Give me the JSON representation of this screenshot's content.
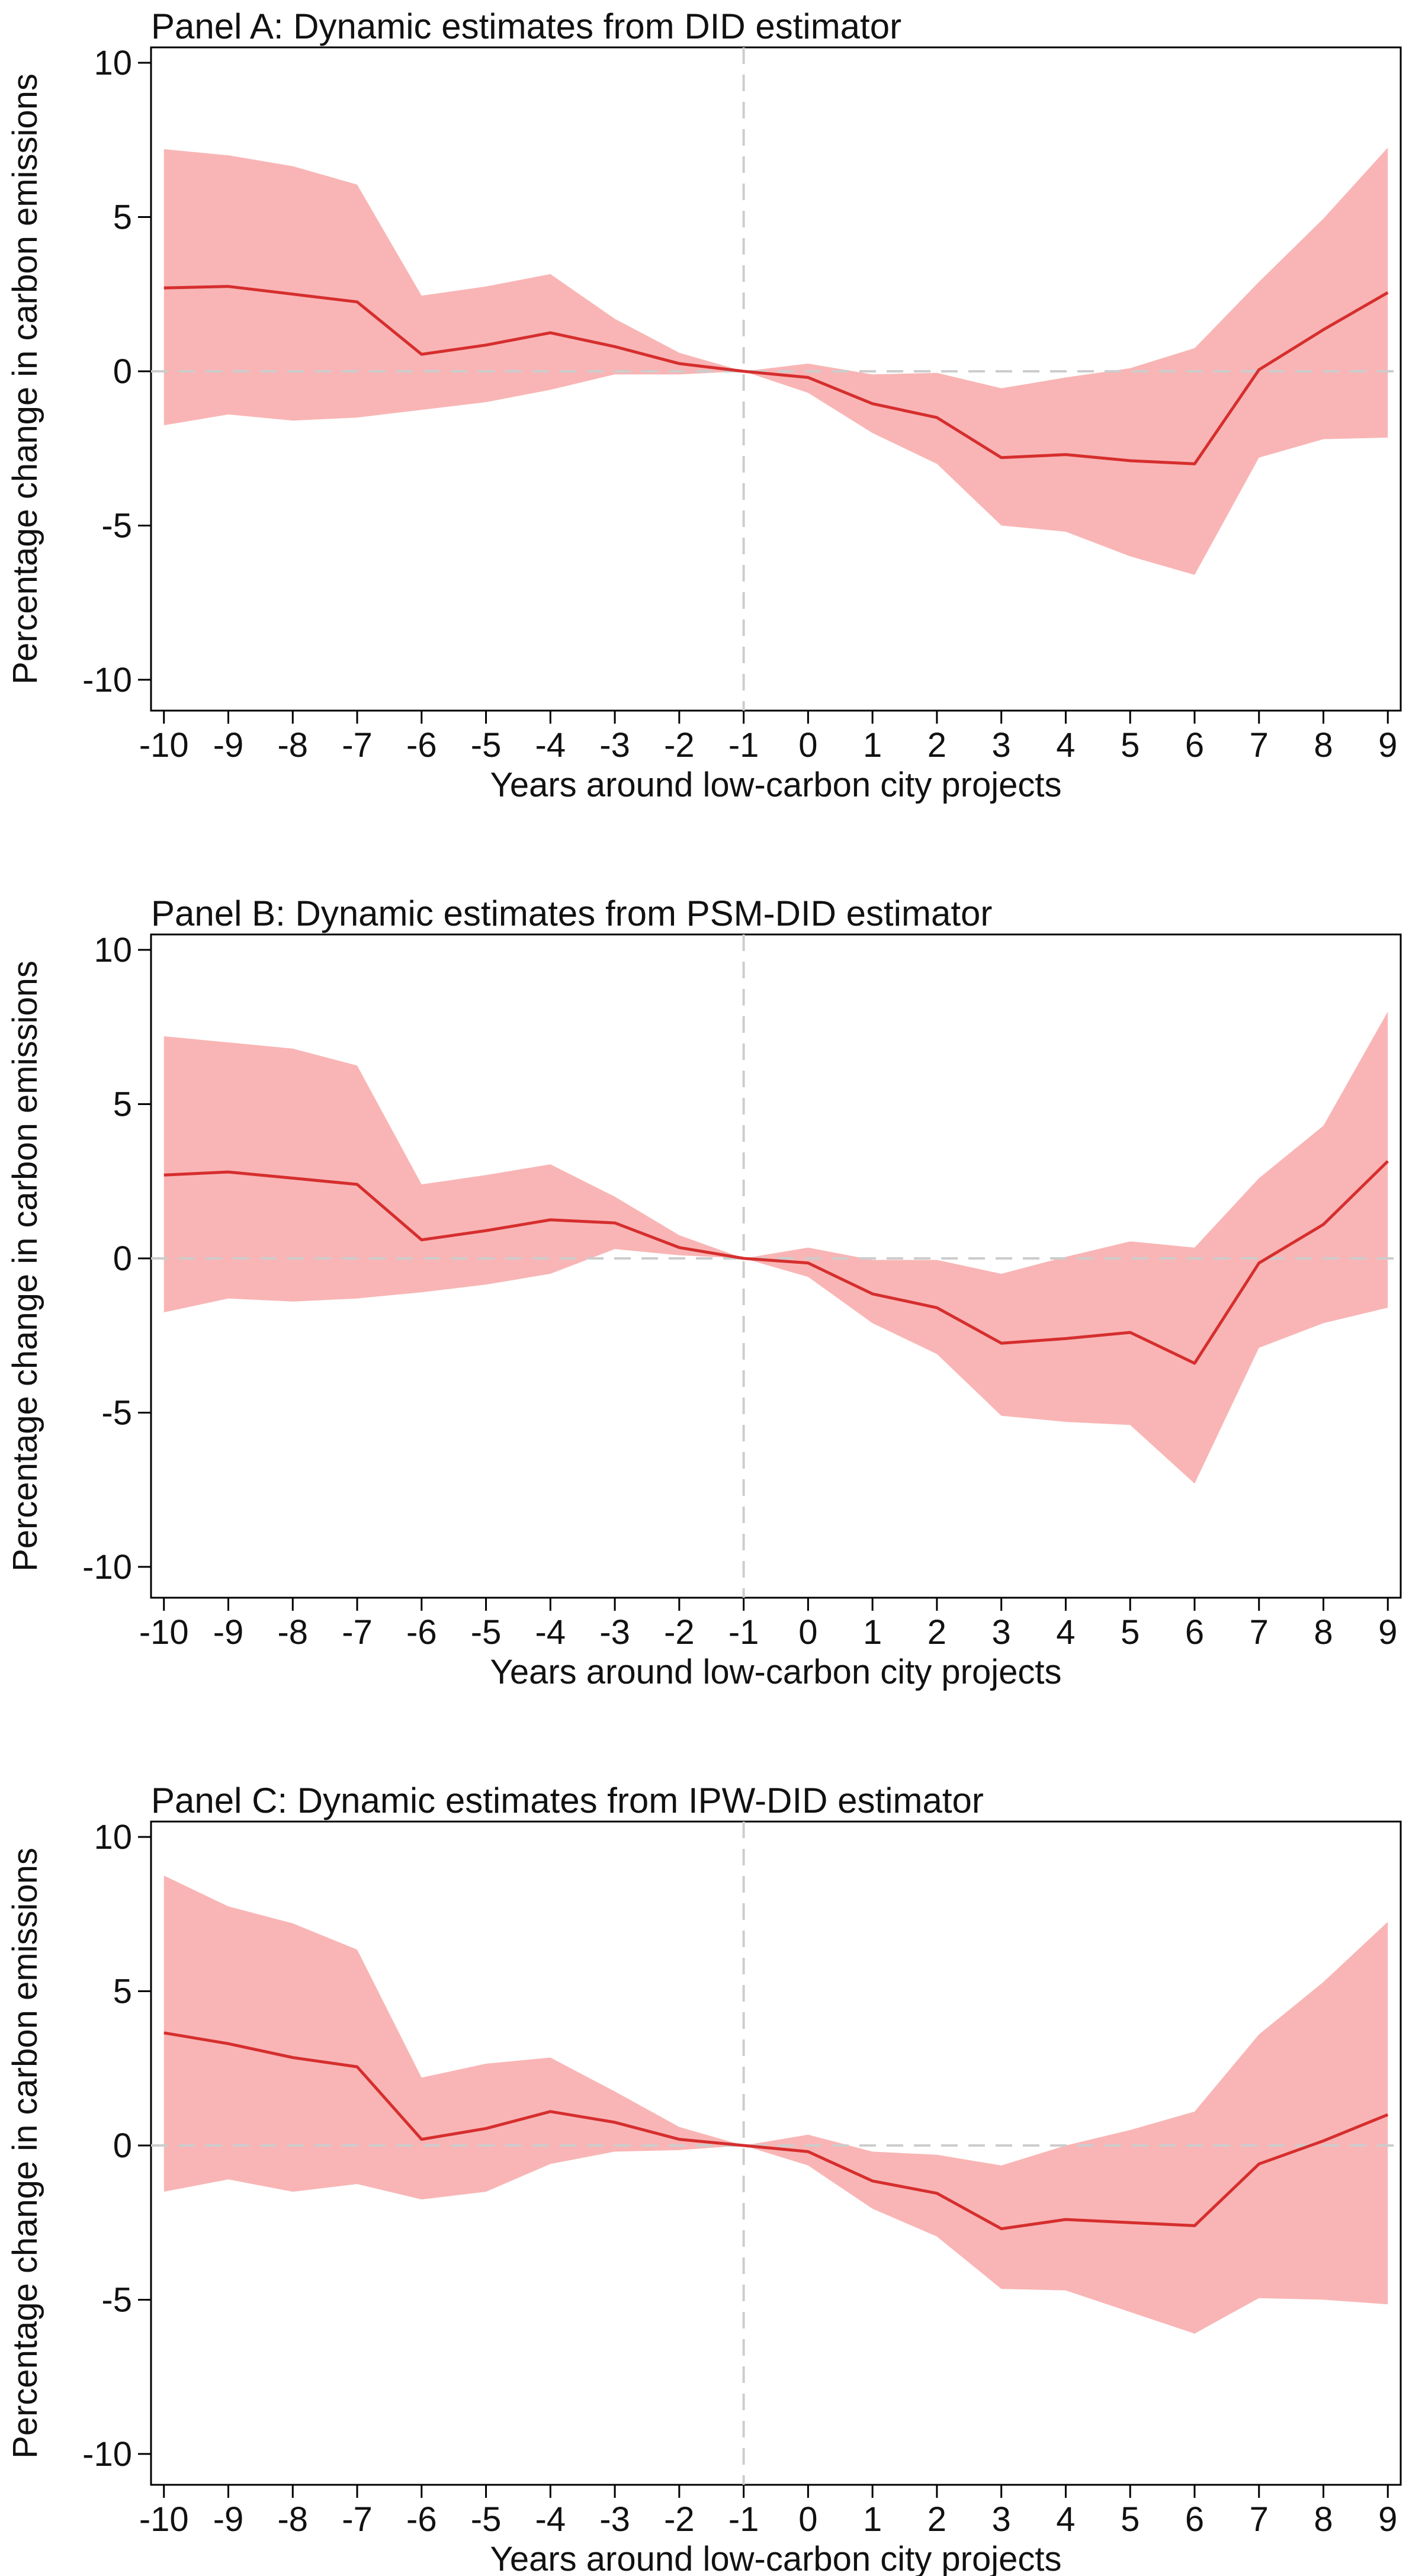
{
  "chart_data": [
    {
      "type": "line",
      "title": "Panel A: Dynamic estimates from DID estimator",
      "xlabel": "Years around low-carbon city projects",
      "ylabel": "Percentage change in carbon emissions",
      "x": [
        -10,
        -9,
        -8,
        -7,
        -6,
        -5,
        -4,
        -3,
        -2,
        -1,
        0,
        1,
        2,
        3,
        4,
        5,
        6,
        7,
        8,
        9
      ],
      "xticks": [
        "-10",
        "-9",
        "-8",
        "-7",
        "-6",
        "-5",
        "-4",
        "-3",
        "-2",
        "-1",
        "0",
        "1",
        "2",
        "3",
        "4",
        "5",
        "6",
        "7",
        "8",
        "9"
      ],
      "yticks": [
        "-10",
        "-5",
        "0",
        "5",
        "10"
      ],
      "xlim": [
        -10.2,
        9.2
      ],
      "ylim": [
        -11,
        10.5
      ],
      "series": [
        {
          "type": "line",
          "values": [
            2.7,
            2.75,
            2.5,
            2.25,
            0.55,
            0.85,
            1.25,
            0.8,
            0.25,
            0.0,
            -0.2,
            -1.05,
            -1.5,
            -2.8,
            -2.7,
            -2.9,
            -3.0,
            0.05,
            1.35,
            2.55
          ]
        },
        {
          "type": "band",
          "lower": [
            -1.75,
            -1.4,
            -1.6,
            -1.5,
            -1.25,
            -1.0,
            -0.6,
            -0.1,
            -0.1,
            0.0,
            -0.7,
            -2.0,
            -3.0,
            -5.0,
            -5.2,
            -6.0,
            -6.6,
            -2.8,
            -2.2,
            -2.15
          ],
          "upper": [
            7.2,
            7.0,
            6.65,
            6.05,
            2.45,
            2.75,
            3.15,
            1.7,
            0.6,
            0.0,
            0.25,
            -0.1,
            -0.05,
            -0.55,
            -0.2,
            0.1,
            0.75,
            2.9,
            4.95,
            7.25
          ]
        }
      ],
      "reference_lines": {
        "x": -1,
        "y": 0
      },
      "colors": {
        "line": "#d62e2e",
        "band": "#f9b5b5",
        "reference": "#cccccc"
      }
    },
    {
      "type": "line",
      "title": "Panel B: Dynamic estimates from PSM-DID estimator",
      "xlabel": "Years around low-carbon city projects",
      "ylabel": "Percentage change in carbon emissions",
      "x": [
        -10,
        -9,
        -8,
        -7,
        -6,
        -5,
        -4,
        -3,
        -2,
        -1,
        0,
        1,
        2,
        3,
        4,
        5,
        6,
        7,
        8,
        9
      ],
      "xticks": [
        "-10",
        "-9",
        "-8",
        "-7",
        "-6",
        "-5",
        "-4",
        "-3",
        "-2",
        "-1",
        "0",
        "1",
        "2",
        "3",
        "4",
        "5",
        "6",
        "7",
        "8",
        "9"
      ],
      "yticks": [
        "-10",
        "-5",
        "0",
        "5",
        "10"
      ],
      "xlim": [
        -10.2,
        9.2
      ],
      "ylim": [
        -11,
        10.5
      ],
      "series": [
        {
          "type": "line",
          "values": [
            2.7,
            2.8,
            2.6,
            2.4,
            0.6,
            0.9,
            1.25,
            1.15,
            0.35,
            0.0,
            -0.15,
            -1.15,
            -1.6,
            -2.75,
            -2.6,
            -2.4,
            -3.4,
            -0.15,
            1.1,
            3.15
          ]
        },
        {
          "type": "band",
          "lower": [
            -1.75,
            -1.3,
            -1.4,
            -1.3,
            -1.1,
            -0.85,
            -0.5,
            0.3,
            0.1,
            0.0,
            -0.6,
            -2.1,
            -3.1,
            -5.1,
            -5.3,
            -5.4,
            -7.3,
            -2.9,
            -2.1,
            -1.6
          ],
          "upper": [
            7.2,
            7.0,
            6.8,
            6.25,
            2.4,
            2.7,
            3.05,
            2.0,
            0.75,
            0.0,
            0.35,
            -0.05,
            -0.05,
            -0.5,
            0.05,
            0.55,
            0.35,
            2.6,
            4.3,
            8.0
          ]
        }
      ],
      "reference_lines": {
        "x": -1,
        "y": 0
      },
      "colors": {
        "line": "#d62e2e",
        "band": "#f9b5b5",
        "reference": "#cccccc"
      }
    },
    {
      "type": "line",
      "title": "Panel C: Dynamic estimates from IPW-DID estimator",
      "xlabel": "Years around low-carbon city projects",
      "ylabel": "Percentage change in carbon emissions",
      "x": [
        -10,
        -9,
        -8,
        -7,
        -6,
        -5,
        -4,
        -3,
        -2,
        -1,
        0,
        1,
        2,
        3,
        4,
        5,
        6,
        7,
        8,
        9
      ],
      "xticks": [
        "-10",
        "-9",
        "-8",
        "-7",
        "-6",
        "-5",
        "-4",
        "-3",
        "-2",
        "-1",
        "0",
        "1",
        "2",
        "3",
        "4",
        "5",
        "6",
        "7",
        "8",
        "9"
      ],
      "yticks": [
        "-10",
        "-5",
        "0",
        "5",
        "10"
      ],
      "xlim": [
        -10.2,
        9.2
      ],
      "ylim": [
        -11,
        10.5
      ],
      "series": [
        {
          "type": "line",
          "values": [
            3.65,
            3.3,
            2.85,
            2.55,
            0.2,
            0.55,
            1.1,
            0.75,
            0.2,
            0.0,
            -0.2,
            -1.15,
            -1.55,
            -2.7,
            -2.4,
            -2.5,
            -2.6,
            -0.6,
            0.15,
            1.0
          ]
        },
        {
          "type": "band",
          "lower": [
            -1.5,
            -1.1,
            -1.5,
            -1.25,
            -1.75,
            -1.5,
            -0.6,
            -0.2,
            -0.15,
            0.0,
            -0.65,
            -2.05,
            -2.95,
            -4.65,
            -4.7,
            -5.4,
            -6.1,
            -4.95,
            -5.0,
            -5.15
          ],
          "upper": [
            8.75,
            7.75,
            7.2,
            6.35,
            2.2,
            2.65,
            2.85,
            1.75,
            0.6,
            0.0,
            0.35,
            -0.2,
            -0.3,
            -0.65,
            0.0,
            0.5,
            1.1,
            3.6,
            5.3,
            7.25
          ]
        }
      ],
      "reference_lines": {
        "x": -1,
        "y": 0
      },
      "colors": {
        "line": "#d62e2e",
        "band": "#f9b5b5",
        "reference": "#cccccc"
      }
    }
  ]
}
